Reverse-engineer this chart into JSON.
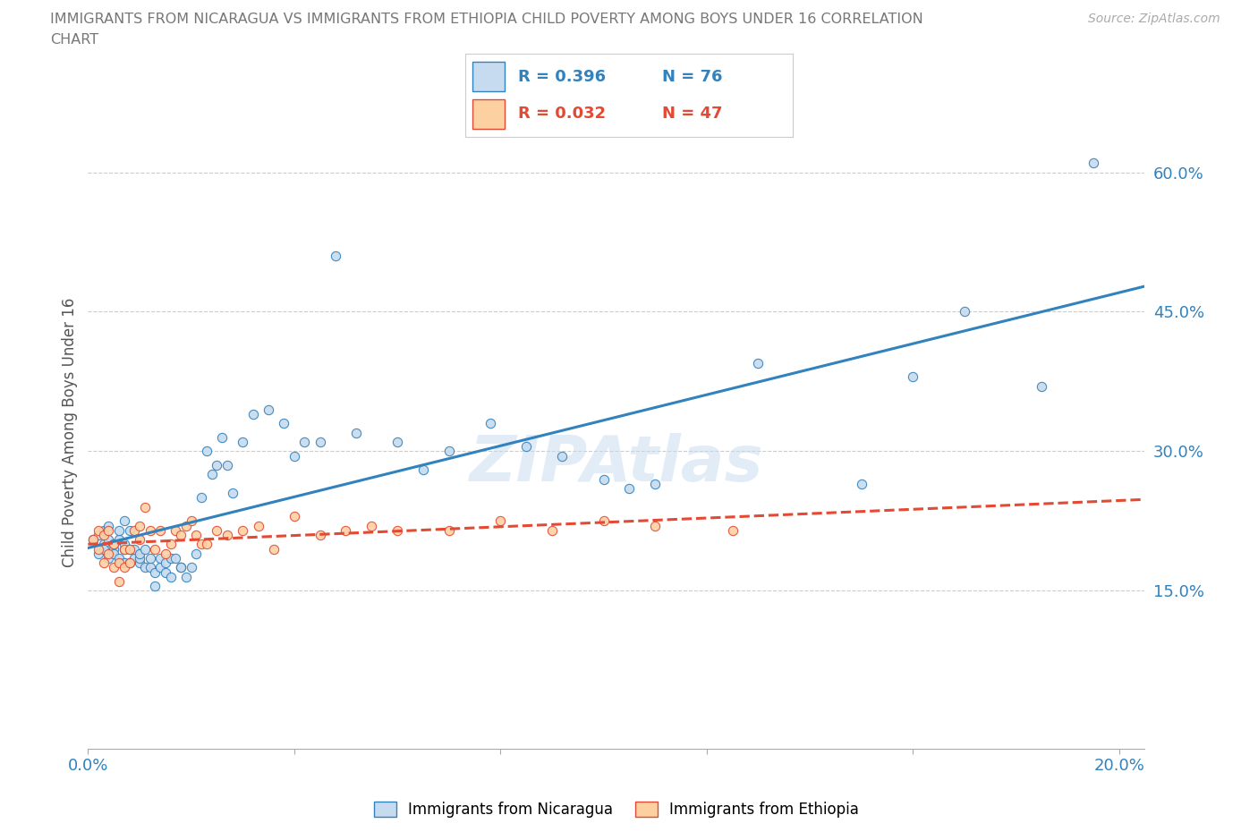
{
  "title_line1": "IMMIGRANTS FROM NICARAGUA VS IMMIGRANTS FROM ETHIOPIA CHILD POVERTY AMONG BOYS UNDER 16 CORRELATION",
  "title_line2": "CHART",
  "source": "Source: ZipAtlas.com",
  "ylabel": "Child Poverty Among Boys Under 16",
  "xlim": [
    0.0,
    0.205
  ],
  "ylim": [
    -0.02,
    0.66
  ],
  "yticks": [
    0.15,
    0.3,
    0.45,
    0.6
  ],
  "ytick_labels": [
    "15.0%",
    "30.0%",
    "45.0%",
    "60.0%"
  ],
  "xtick_positions": [
    0.0,
    0.04,
    0.08,
    0.12,
    0.16,
    0.2
  ],
  "xtick_labels": [
    "0.0%",
    "",
    "",
    "",
    "",
    "20.0%"
  ],
  "legend_r1": "0.396",
  "legend_n1": "76",
  "legend_r2": "0.032",
  "legend_n2": "47",
  "color_nic_face": "#c6dbef",
  "color_nic_edge": "#3182bd",
  "color_nic_line": "#3182bd",
  "color_eth_face": "#fdd0a2",
  "color_eth_edge": "#e34a33",
  "color_eth_line": "#e34a33",
  "watermark_color": "#c6dbef",
  "nicaragua_x": [
    0.001,
    0.002,
    0.002,
    0.003,
    0.003,
    0.003,
    0.004,
    0.004,
    0.004,
    0.005,
    0.005,
    0.005,
    0.006,
    0.006,
    0.006,
    0.007,
    0.007,
    0.007,
    0.007,
    0.008,
    0.008,
    0.008,
    0.009,
    0.009,
    0.01,
    0.01,
    0.01,
    0.011,
    0.011,
    0.012,
    0.012,
    0.013,
    0.013,
    0.014,
    0.014,
    0.015,
    0.015,
    0.016,
    0.016,
    0.017,
    0.018,
    0.018,
    0.019,
    0.02,
    0.021,
    0.022,
    0.023,
    0.024,
    0.025,
    0.026,
    0.027,
    0.028,
    0.03,
    0.032,
    0.035,
    0.038,
    0.04,
    0.042,
    0.045,
    0.048,
    0.052,
    0.06,
    0.065,
    0.07,
    0.078,
    0.085,
    0.092,
    0.1,
    0.105,
    0.11,
    0.13,
    0.15,
    0.16,
    0.17,
    0.185,
    0.195
  ],
  "nicaragua_y": [
    0.205,
    0.19,
    0.21,
    0.2,
    0.195,
    0.215,
    0.185,
    0.205,
    0.22,
    0.195,
    0.2,
    0.19,
    0.185,
    0.205,
    0.215,
    0.18,
    0.195,
    0.2,
    0.225,
    0.18,
    0.195,
    0.215,
    0.185,
    0.195,
    0.18,
    0.185,
    0.19,
    0.175,
    0.195,
    0.175,
    0.185,
    0.155,
    0.17,
    0.175,
    0.185,
    0.17,
    0.18,
    0.165,
    0.185,
    0.185,
    0.175,
    0.175,
    0.165,
    0.175,
    0.19,
    0.25,
    0.3,
    0.275,
    0.285,
    0.315,
    0.285,
    0.255,
    0.31,
    0.34,
    0.345,
    0.33,
    0.295,
    0.31,
    0.31,
    0.51,
    0.32,
    0.31,
    0.28,
    0.3,
    0.33,
    0.305,
    0.295,
    0.27,
    0.26,
    0.265,
    0.395,
    0.265,
    0.38,
    0.45,
    0.37,
    0.61
  ],
  "ethiopia_x": [
    0.001,
    0.002,
    0.002,
    0.003,
    0.003,
    0.004,
    0.004,
    0.005,
    0.005,
    0.006,
    0.006,
    0.007,
    0.007,
    0.008,
    0.008,
    0.009,
    0.01,
    0.01,
    0.011,
    0.012,
    0.013,
    0.014,
    0.015,
    0.016,
    0.017,
    0.018,
    0.019,
    0.02,
    0.021,
    0.022,
    0.023,
    0.025,
    0.027,
    0.03,
    0.033,
    0.036,
    0.04,
    0.045,
    0.05,
    0.055,
    0.06,
    0.07,
    0.08,
    0.09,
    0.1,
    0.11,
    0.125
  ],
  "ethiopia_y": [
    0.205,
    0.195,
    0.215,
    0.18,
    0.21,
    0.19,
    0.215,
    0.2,
    0.175,
    0.16,
    0.18,
    0.175,
    0.195,
    0.18,
    0.195,
    0.215,
    0.205,
    0.22,
    0.24,
    0.215,
    0.195,
    0.215,
    0.19,
    0.2,
    0.215,
    0.21,
    0.22,
    0.225,
    0.21,
    0.2,
    0.2,
    0.215,
    0.21,
    0.215,
    0.22,
    0.195,
    0.23,
    0.21,
    0.215,
    0.22,
    0.215,
    0.215,
    0.225,
    0.215,
    0.225,
    0.22,
    0.215
  ]
}
